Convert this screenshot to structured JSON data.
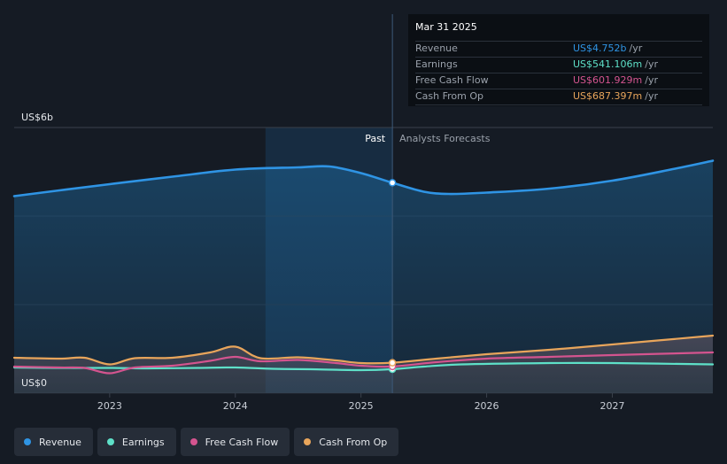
{
  "chart_data": {
    "type": "line",
    "ylabel_top": "US$6b",
    "ylabel_bottom": "US$0",
    "ylim": [
      0,
      6
    ],
    "x_ticks": [
      "2023",
      "2024",
      "2025",
      "2026",
      "2027"
    ],
    "x_tick_values": [
      2023,
      2024,
      2025,
      2026,
      2027
    ],
    "xlim": [
      2022.24,
      2027.8
    ],
    "past_label": "Past",
    "forecast_label": "Analysts Forecasts",
    "divider_x": 2025.25,
    "highlight_start": 2024.24,
    "series": [
      {
        "name": "Revenue",
        "color": "#2f94e4",
        "x": [
          2022.24,
          2022.6,
          2023.0,
          2023.5,
          2024.0,
          2024.5,
          2024.75,
          2025.0,
          2025.25,
          2025.5,
          2025.7,
          2026.0,
          2026.5,
          2027.0,
          2027.5,
          2027.8
        ],
        "values": [
          4.45,
          4.58,
          4.72,
          4.89,
          5.05,
          5.1,
          5.12,
          4.97,
          4.752,
          4.55,
          4.5,
          4.53,
          4.62,
          4.8,
          5.07,
          5.25
        ]
      },
      {
        "name": "Earnings",
        "color": "#5ee0c8",
        "x": [
          2022.24,
          2022.6,
          2023.0,
          2023.3,
          2023.7,
          2024.0,
          2024.3,
          2024.6,
          2025.0,
          2025.25,
          2025.5,
          2025.8,
          2026.5,
          2027.0,
          2027.8
        ],
        "values": [
          0.58,
          0.57,
          0.57,
          0.56,
          0.57,
          0.58,
          0.55,
          0.54,
          0.52,
          0.541,
          0.6,
          0.65,
          0.68,
          0.68,
          0.65
        ]
      },
      {
        "name": "Free Cash Flow",
        "color": "#d4548f",
        "x": [
          2022.24,
          2022.6,
          2022.8,
          2023.0,
          2023.2,
          2023.5,
          2023.8,
          2024.0,
          2024.2,
          2024.5,
          2024.8,
          2025.0,
          2025.25,
          2025.6,
          2026.0,
          2026.5,
          2027.0,
          2027.8
        ],
        "values": [
          0.6,
          0.58,
          0.57,
          0.45,
          0.58,
          0.62,
          0.73,
          0.82,
          0.72,
          0.75,
          0.68,
          0.62,
          0.602,
          0.7,
          0.78,
          0.82,
          0.86,
          0.92
        ]
      },
      {
        "name": "Cash From Op",
        "color": "#e8a55b",
        "x": [
          2022.24,
          2022.6,
          2022.8,
          2023.0,
          2023.2,
          2023.5,
          2023.8,
          2024.0,
          2024.2,
          2024.5,
          2024.8,
          2025.0,
          2025.25,
          2025.6,
          2026.0,
          2026.5,
          2027.0,
          2027.8
        ],
        "values": [
          0.8,
          0.78,
          0.8,
          0.65,
          0.79,
          0.8,
          0.92,
          1.05,
          0.79,
          0.81,
          0.74,
          0.68,
          0.687,
          0.78,
          0.88,
          0.98,
          1.1,
          1.3
        ]
      }
    ]
  },
  "tooltip": {
    "date": "Mar 31 2025",
    "unit": "/yr",
    "rows": [
      {
        "label": "Revenue",
        "value": "US$4.752b",
        "color": "#2f94e4"
      },
      {
        "label": "Earnings",
        "value": "US$541.106m",
        "color": "#5ee0c8"
      },
      {
        "label": "Free Cash Flow",
        "value": "US$601.929m",
        "color": "#d4548f"
      },
      {
        "label": "Cash From Op",
        "value": "US$687.397m",
        "color": "#e8a55b"
      }
    ]
  },
  "legend": [
    {
      "label": "Revenue",
      "color": "#2f94e4"
    },
    {
      "label": "Earnings",
      "color": "#5ee0c8"
    },
    {
      "label": "Free Cash Flow",
      "color": "#d4548f"
    },
    {
      "label": "Cash From Op",
      "color": "#e8a55b"
    }
  ]
}
